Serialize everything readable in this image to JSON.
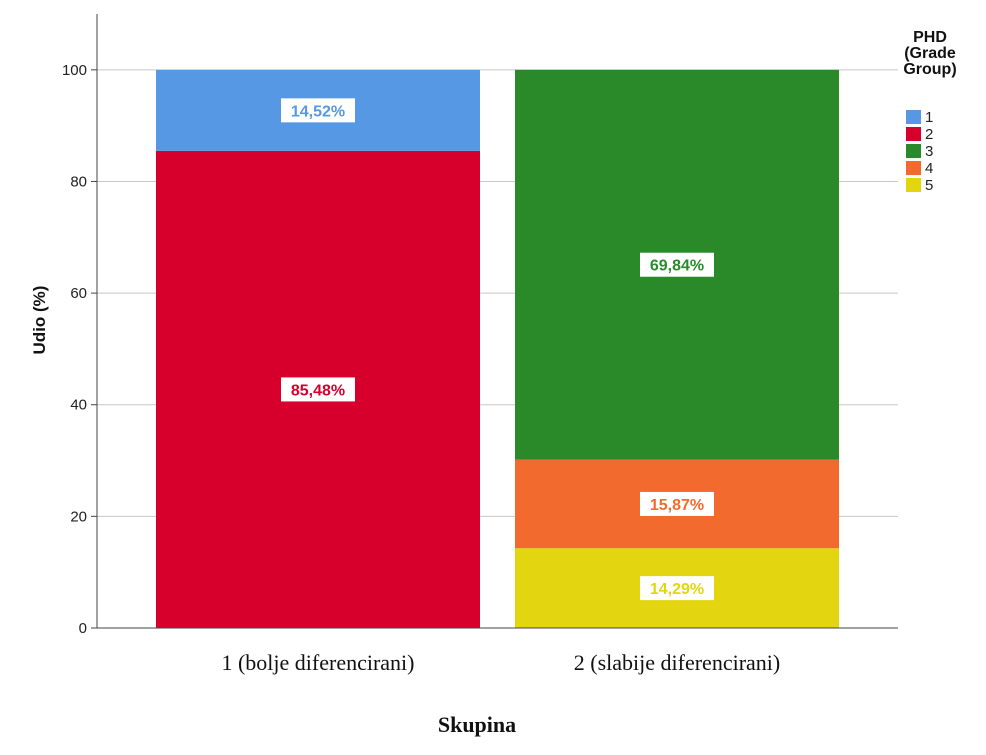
{
  "chart_data": {
    "type": "bar",
    "stacked": true,
    "categories": [
      "1 (bolje diferencirani)",
      "2 (slabije diferencirani)"
    ],
    "xlabel": "Skupina",
    "ylabel": "Udio (%)",
    "ylim": [
      0,
      110
    ],
    "yticks": [
      0,
      20,
      40,
      60,
      80,
      100
    ],
    "grid": "horizontal",
    "legend": {
      "title_lines": [
        "PHD",
        "(Grade",
        "Group)"
      ],
      "placement": "top-right"
    },
    "series": [
      {
        "name": "1",
        "color": "#5698e3",
        "values": [
          14.52,
          0
        ],
        "labels": [
          "14,52%",
          ""
        ]
      },
      {
        "name": "2",
        "color": "#d7002d",
        "values": [
          85.48,
          0
        ],
        "labels": [
          "85,48%",
          ""
        ]
      },
      {
        "name": "3",
        "color": "#2a8a2a",
        "values": [
          0,
          69.84
        ],
        "labels": [
          "",
          "69,84%"
        ]
      },
      {
        "name": "4",
        "color": "#f26a2e",
        "values": [
          0,
          15.87
        ],
        "labels": [
          "",
          "15,87%"
        ]
      },
      {
        "name": "5",
        "color": "#e3d610",
        "values": [
          0,
          14.29
        ],
        "labels": [
          "",
          "14,29%"
        ]
      }
    ]
  }
}
